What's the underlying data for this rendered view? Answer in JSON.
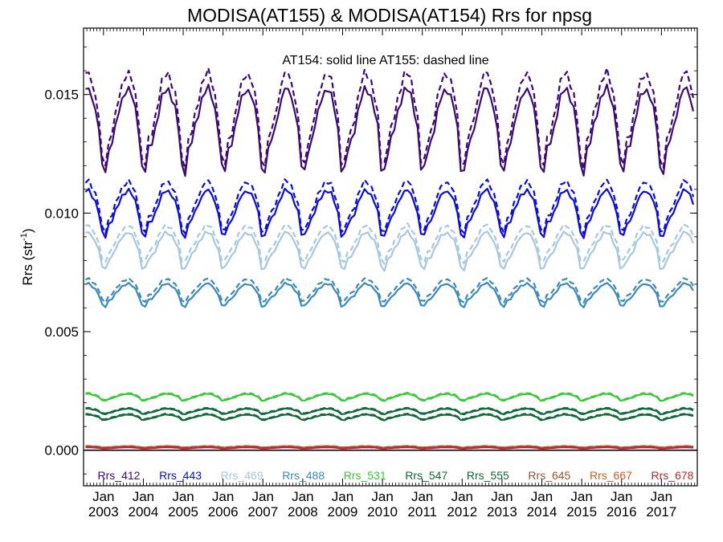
{
  "chart_data": {
    "type": "line",
    "title": "MODISA(AT155) & MODISA(AT154)  Rrs for npsg",
    "subtitle": "AT154: solid line   AT155: dashed line",
    "ylabel_main": "Rrs (str",
    "ylabel_sup": "-1",
    "ylabel_close": ")",
    "xlim": [
      2002.5,
      2017.9
    ],
    "ylim": [
      -0.0015,
      0.0178
    ],
    "yticks": [
      "0.000",
      "0.005",
      "0.010",
      "0.015"
    ],
    "ytick_values": [
      0.0,
      0.005,
      0.01,
      0.015
    ],
    "xticks_top": [
      "Jan",
      "Jan",
      "Jan",
      "Jan",
      "Jan",
      "Jan",
      "Jan",
      "Jan",
      "Jan",
      "Jan",
      "Jan",
      "Jan",
      "Jan",
      "Jan",
      "Jan"
    ],
    "xticks_bottom": [
      "2003",
      "2004",
      "2005",
      "2006",
      "2007",
      "2008",
      "2009",
      "2010",
      "2011",
      "2012",
      "2013",
      "2014",
      "2015",
      "2016",
      "2017"
    ],
    "zero_line": 0.0,
    "series": [
      {
        "name": "Rrs_412",
        "color": "#3b0a78",
        "mean": 0.0137,
        "amp": 0.0018,
        "amp155": 0.002,
        "offset155": 0.0005
      },
      {
        "name": "Rrs_443",
        "color": "#0a0aee",
        "mean": 0.0101,
        "amp": 0.001,
        "amp155": 0.0011,
        "offset155": 0.0003
      },
      {
        "name": "Rrs_469",
        "color": "#a6c8e0",
        "mean": 0.0085,
        "amp": 0.0008,
        "amp155": 0.0008,
        "offset155": 0.0003
      },
      {
        "name": "Rrs_488",
        "color": "#3a8ac2",
        "mean": 0.0066,
        "amp": 0.0005,
        "amp155": 0.0005,
        "offset155": 0.0002
      },
      {
        "name": "Rrs_531",
        "color": "#32cd32",
        "mean": 0.00225,
        "amp": 0.00015,
        "amp155": 0.00015,
        "offset155": 3e-05
      },
      {
        "name": "Rrs_547",
        "color": "#0e6b3a",
        "mean": 0.00165,
        "amp": 0.00012,
        "amp155": 0.00012,
        "offset155": 3e-05
      },
      {
        "name": "Rrs_555",
        "color": "#0e6b3a",
        "mean": 0.0014,
        "amp": 0.00012,
        "amp155": 0.00012,
        "offset155": 3e-05
      },
      {
        "name": "Rrs_645",
        "color": "#a0522d",
        "mean": 0.00014,
        "amp": 3e-05,
        "amp155": 3e-05,
        "offset155": 1e-05
      },
      {
        "name": "Rrs_667",
        "color": "#e0581a",
        "mean": 0.00012,
        "amp": 3e-05,
        "amp155": 3e-05,
        "offset155": 1e-05
      },
      {
        "name": "Rrs_678",
        "color": "#c0262c",
        "mean": 0.0001,
        "amp": 3e-05,
        "amp155": 3e-05,
        "offset155": 1e-05
      }
    ]
  }
}
